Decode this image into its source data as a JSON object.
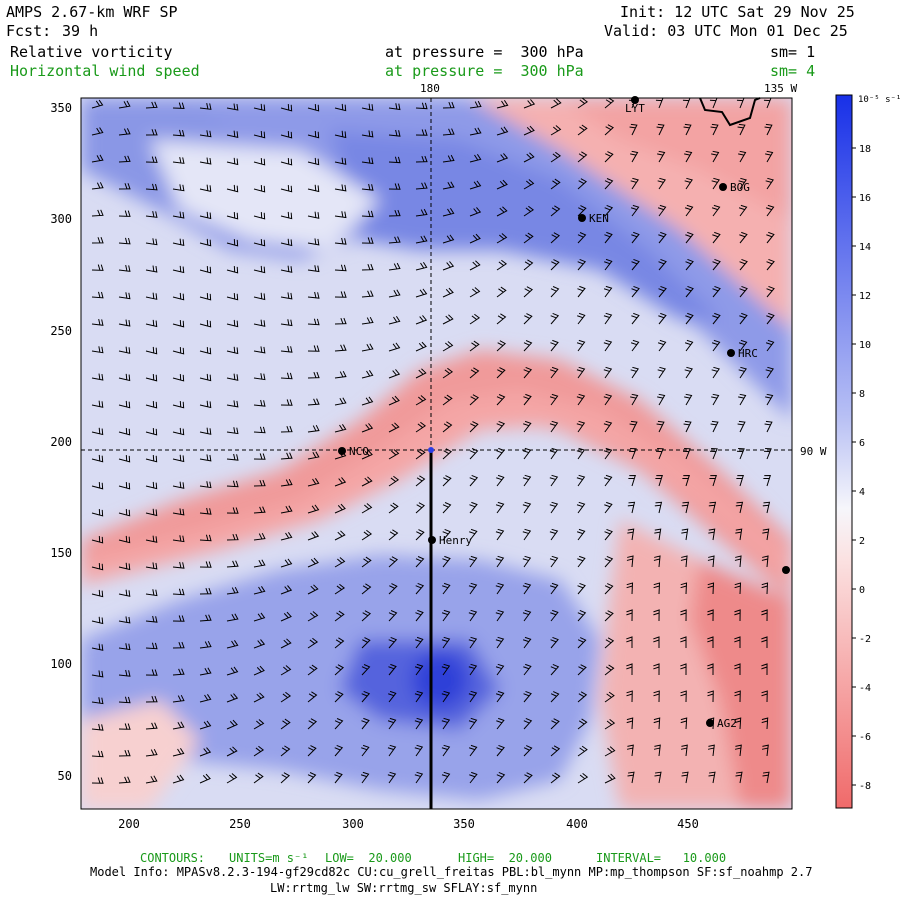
{
  "header": {
    "model_title": "AMPS 2.67-km WRF SP",
    "forecast_label": "Fcst:",
    "forecast_hours": "39 h",
    "init": "Init: 12 UTC Sat 29 Nov 25",
    "valid": "Valid: 03 UTC Mon 01 Dec 25",
    "field1_name": "Relative vorticity",
    "field1_level": "at pressure =  300 hPa",
    "field1_smooth": "sm= 1",
    "field2_name": "Horizontal wind speed",
    "field2_level": "at pressure =  300 hPa",
    "field2_smooth": "sm= 4"
  },
  "map": {
    "lon_180": "180",
    "lon_135w": "135 W",
    "lon_90w": "90 W",
    "x_ticks": [
      "200",
      "250",
      "300",
      "350",
      "400",
      "450"
    ],
    "y_ticks": [
      "350",
      "300",
      "250",
      "200",
      "150",
      "100",
      "50"
    ],
    "stations": [
      "LYT",
      "BOG",
      "KEN",
      "HRC",
      "NCO",
      "Henry",
      "AG2"
    ]
  },
  "colorbar": {
    "units": "10⁻⁵ s⁻¹",
    "ticks": [
      "18",
      "16",
      "14",
      "12",
      "10",
      "8",
      "6",
      "4",
      "2",
      "0",
      "-2",
      "-4",
      "-6",
      "-8"
    ],
    "positive_color": "#2b3ee6",
    "negative_color": "#ee4b4b"
  },
  "footer": {
    "contours_label": "CONTOURS:",
    "units_label": "UNITS=m s⁻¹",
    "low": "LOW=  20.000",
    "high": "HIGH=  20.000",
    "interval": "INTERVAL=   10.000",
    "model_info": "Model Info: MPASv8.2.3-194-gf29cd82c CU:cu_grell_freitas PBL:bl_mynn MP:mp_thompson SF:sf_noahmp 2.7",
    "model_info2": "LW:rrtmg_lw SW:rrtmg_sw SFLAY:sf_mynn"
  }
}
